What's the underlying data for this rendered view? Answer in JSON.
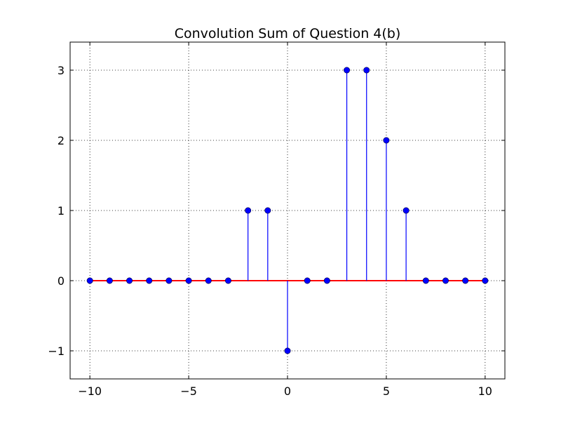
{
  "chart_data": {
    "type": "stem",
    "title": "Convolution Sum of Question 4(b)",
    "xlabel": "",
    "ylabel": "",
    "xlim": [
      -11,
      11
    ],
    "ylim": [
      -1.4,
      3.4
    ],
    "xticks": [
      -10,
      -5,
      0,
      5,
      10
    ],
    "xtick_labels": [
      "−10",
      "−5",
      "0",
      "5",
      "10"
    ],
    "yticks": [
      -1,
      0,
      1,
      2,
      3
    ],
    "ytick_labels": [
      "−1",
      "0",
      "1",
      "2",
      "3"
    ],
    "grid": true,
    "series": [
      {
        "x": [
          -10,
          -9,
          -8,
          -7,
          -6,
          -5,
          -4,
          -3,
          -2,
          -1,
          0,
          1,
          2,
          3,
          4,
          5,
          6,
          7,
          8,
          9,
          10
        ],
        "values": [
          0,
          0,
          0,
          0,
          0,
          0,
          0,
          0,
          1,
          1,
          -1,
          0,
          0,
          3,
          3,
          2,
          1,
          0,
          0,
          0,
          0
        ]
      }
    ],
    "colors": {
      "stem": "#0000ff",
      "marker": "#0000ff",
      "baseline": "#ff0000",
      "grid": "#000000"
    }
  }
}
